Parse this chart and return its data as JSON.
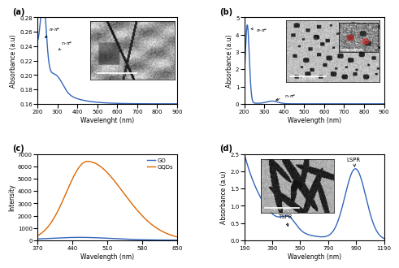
{
  "panel_a": {
    "label": "(a)",
    "xlabel": "Wavelenght (nm)",
    "ylabel": "Absorbance (a.u)",
    "xlim": [
      200,
      900
    ],
    "ylim": [
      0.16,
      0.28
    ],
    "yticks": [
      0.16,
      0.18,
      0.2,
      0.22,
      0.24,
      0.26,
      0.28
    ],
    "line_color": "#3366bb"
  },
  "panel_b": {
    "label": "(b)",
    "xlabel": "Wavelength (nm)",
    "ylabel": "Absorbance (a.u)",
    "xlim": [
      200,
      900
    ],
    "ylim": [
      0,
      5
    ],
    "yticks": [
      0,
      1,
      2,
      3,
      4,
      5
    ],
    "line_color": "#3366bb"
  },
  "panel_c": {
    "label": "(c)",
    "xlabel": "Wavelength (nm)",
    "ylabel": "Intensity",
    "xlim": [
      370,
      650
    ],
    "ylim": [
      0,
      7000
    ],
    "yticks": [
      0,
      1000,
      2000,
      3000,
      4000,
      5000,
      6000,
      7000
    ],
    "xticks": [
      370,
      440,
      510,
      580,
      650
    ],
    "go_color": "#3366bb",
    "gqd_color": "#dd6600",
    "legend_go": "GO",
    "legend_gqd": "GQDs"
  },
  "panel_d": {
    "label": "(d)",
    "xlabel": "Wavelength (nm)",
    "ylabel": "Absorbance (a.u)",
    "xlim": [
      190,
      1190
    ],
    "ylim": [
      0,
      2.5
    ],
    "yticks": [
      0,
      0.5,
      1.0,
      1.5,
      2.0,
      2.5
    ],
    "xticks": [
      190,
      390,
      590,
      790,
      990,
      1190
    ],
    "line_color": "#3366bb"
  }
}
